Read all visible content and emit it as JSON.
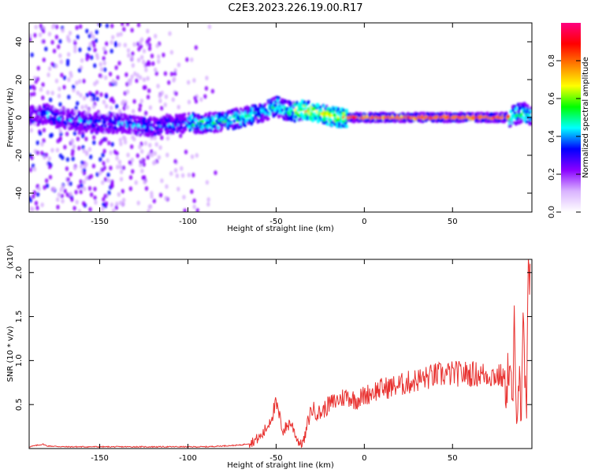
{
  "title": "C2E3.2023.226.19.00.R17",
  "chart_data": [
    {
      "type": "heatmap",
      "xlabel": "Height of straight line (km)",
      "ylabel": "Frequency (Hz)",
      "xlim": [
        -190,
        95
      ],
      "ylim": [
        -50,
        50
      ],
      "xticks": [
        -150,
        -100,
        -50,
        0,
        50
      ],
      "yticks": [
        -40,
        -20,
        0,
        20,
        40
      ],
      "xtick_labels": [
        "-150",
        "-100",
        "-50",
        "0",
        "50"
      ],
      "ytick_labels": [
        "-40",
        "-20",
        "0",
        "20",
        "40"
      ],
      "colorbar": {
        "label": "Normalized spectral amplitude",
        "range": [
          0,
          1
        ],
        "ticks": [
          0,
          0.2,
          0.4,
          0.6,
          0.8
        ],
        "tick_labels": [
          "0.0",
          "0.2",
          "0.4",
          "0.6",
          "0.8"
        ],
        "colormap": [
          "#ffffff",
          "#d9b3ff",
          "#8a00ff",
          "#0000ff",
          "#00ffff",
          "#00ff00",
          "#ffff00",
          "#ff8000",
          "#ff0000",
          "#ff0080"
        ]
      },
      "ridge": {
        "x": [
          -185,
          -180,
          -175,
          -160,
          -150,
          -140,
          -130,
          -120,
          -110,
          -100,
          -90,
          -80,
          -70,
          -60,
          -55,
          -50,
          -45,
          -40,
          -35,
          -30,
          -25,
          -20,
          -15,
          -10,
          0,
          20,
          40,
          60,
          80,
          85,
          90,
          93
        ],
        "y": [
          1,
          2,
          0,
          -2,
          -3,
          -3,
          -4,
          -5,
          -4,
          -3,
          -3,
          -2,
          0,
          2,
          4,
          6,
          4,
          3,
          4,
          3,
          2,
          1,
          0,
          0,
          0,
          0,
          0,
          0,
          0,
          1,
          3,
          1
        ]
      },
      "grid": false
    },
    {
      "type": "line",
      "xlabel": "Height of straight line (km)",
      "ylabel": "SNR (10 * v/v)",
      "y_multiplier_label": "(x10⁴)",
      "xlim": [
        -190,
        95
      ],
      "ylim": [
        0,
        2.15
      ],
      "xticks": [
        -150,
        -100,
        -50,
        0,
        50
      ],
      "yticks": [
        0.5,
        1.0,
        1.5,
        2.0
      ],
      "xtick_labels": [
        "-150",
        "-100",
        "-50",
        "0",
        "50"
      ],
      "ytick_labels": [
        "0.5",
        "1.0",
        "1.5",
        "2.0"
      ],
      "series": [
        {
          "color": "#e8312f",
          "x": [
            -190,
            -182,
            -180,
            -170,
            -150,
            -120,
            -100,
            -90,
            -80,
            -70,
            -65,
            -60,
            -58,
            -55,
            -52,
            -50,
            -48,
            -46,
            -44,
            -42,
            -40,
            -38,
            -36,
            -34,
            -32,
            -30,
            -25,
            -20,
            -15,
            -10,
            -5,
            0,
            5,
            10,
            20,
            25,
            30,
            35,
            40,
            50,
            60,
            70,
            78,
            80,
            82,
            84,
            85,
            86,
            88,
            89,
            90,
            92,
            93,
            94
          ],
          "y": [
            0.02,
            0.05,
            0.03,
            0.02,
            0.02,
            0.02,
            0.02,
            0.02,
            0.03,
            0.04,
            0.06,
            0.12,
            0.15,
            0.25,
            0.4,
            0.5,
            0.35,
            0.2,
            0.25,
            0.3,
            0.22,
            0.1,
            0.05,
            0.1,
            0.3,
            0.45,
            0.4,
            0.5,
            0.55,
            0.6,
            0.55,
            0.6,
            0.65,
            0.68,
            0.72,
            0.75,
            0.78,
            0.8,
            0.83,
            0.85,
            0.85,
            0.84,
            0.82,
            0.75,
            0.9,
            0.5,
            1.2,
            0.4,
            1.0,
            0.2,
            1.3,
            0.35,
            1.8,
            2.1
          ]
        }
      ],
      "grid": false
    }
  ]
}
